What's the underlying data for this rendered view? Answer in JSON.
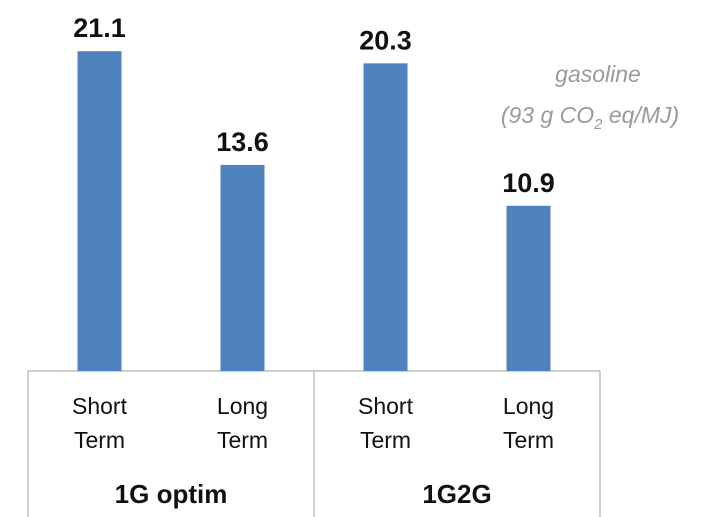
{
  "chart_data": {
    "type": "bar",
    "title": "",
    "xlabel": "",
    "ylabel": "",
    "ylim": [
      0,
      22.5
    ],
    "grid": false,
    "legend": "none",
    "bar_color": "#4f81bd",
    "groups": [
      {
        "label": "1G optim",
        "bars": [
          {
            "category": [
              "Short",
              "Term"
            ],
            "value": 21.1
          },
          {
            "category": [
              "Long",
              "Term"
            ],
            "value": 13.6
          }
        ]
      },
      {
        "label": "1G2G",
        "bars": [
          {
            "category": [
              "Short",
              "Term"
            ],
            "value": 20.3
          },
          {
            "category": [
              "Long",
              "Term"
            ],
            "value": 10.9
          }
        ]
      }
    ],
    "annotation": {
      "line1": "gasoline",
      "line2_prefix": "(93 g CO",
      "line2_sub": "2",
      "line2_suffix": " eq/MJ)"
    }
  }
}
